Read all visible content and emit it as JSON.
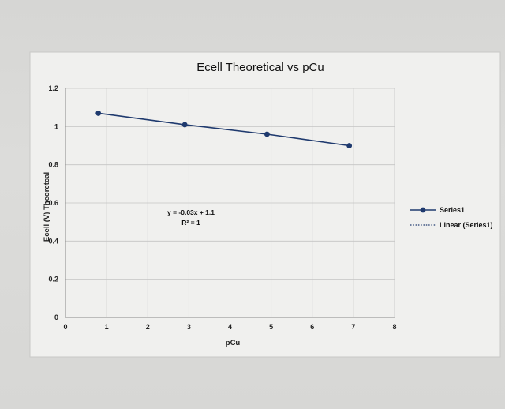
{
  "chart_data": {
    "type": "line",
    "title": "Ecell Theoretical vs pCu",
    "xlabel": "pCu",
    "ylabel": "Ecell (V) Theoretcal",
    "xlim": [
      0,
      8
    ],
    "ylim": [
      0,
      1.2
    ],
    "x_ticks": [
      "0",
      "1",
      "2",
      "3",
      "4",
      "5",
      "6",
      "7",
      "8"
    ],
    "y_ticks": [
      "0",
      "0.2",
      "0.4",
      "0.6",
      "0.8",
      "1",
      "1.2"
    ],
    "grid": true,
    "legend_position": "right",
    "series": [
      {
        "name": "Series1",
        "color": "#1f3a6e",
        "x": [
          0.8,
          2.9,
          4.9,
          6.9
        ],
        "y": [
          1.07,
          1.01,
          0.96,
          0.9
        ]
      }
    ],
    "trendline": {
      "name": "Linear (Series1)",
      "equation": "y = -0.03x + 1.1",
      "r_squared": "R² = 1"
    }
  }
}
